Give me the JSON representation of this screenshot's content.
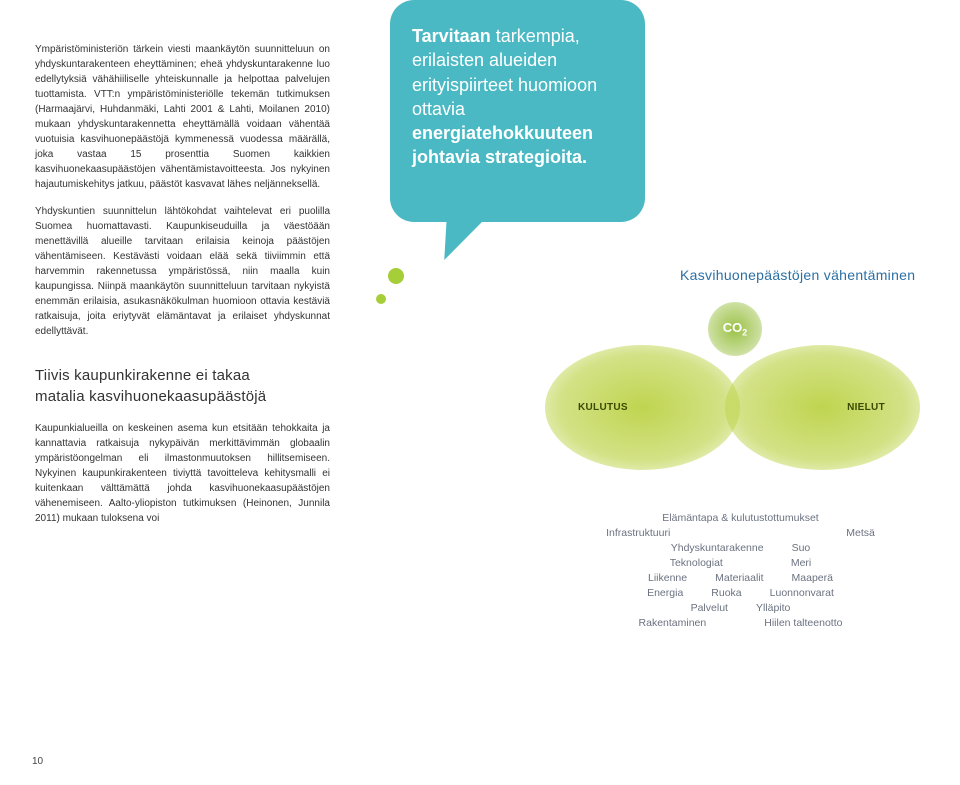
{
  "colors": {
    "bubble_bg": "#4bb9c4",
    "accent_dot": "#a6ce39",
    "section_title": "#2b6fa3",
    "blob_fill": "#bcd246",
    "blob_text": "#3a4a00",
    "tag_text": "#6b7280",
    "body_text": "#333333"
  },
  "leftColumn": {
    "para1": "Ympäristöministeriön tärkein viesti maankäytön suunnitteluun on yhdyskuntarakenteen eheyttäminen; eheä yhdyskuntarakenne luo edellytyksiä vähähiiliselle yhteiskunnalle ja helpottaa palvelujen tuottamista. VTT:n ympäristöministeriölle tekemän tutkimuksen (Harmaajärvi, Huhdanmäki, Lahti 2001 & Lahti, Moilanen 2010) mukaan yhdyskuntarakennetta eheyttämällä voidaan vähentää vuotuisia kasvihuonepäästöjä kymmenessä vuodessa määrällä, joka vastaa 15 prosenttia Suomen kaikkien kasvihuonekaasupäästöjen vähentämistavoitteesta. Jos nykyinen hajautumiskehitys jatkuu, päästöt kasvavat lähes neljänneksellä.",
    "para2": "Yhdyskuntien suunnittelun lähtökohdat vaihtelevat eri puolilla Suomea huomattavasti. Kaupunkiseuduilla ja väestöään menettävillä alueille tarvitaan erilaisia keinoja päästöjen vähentämiseen. Kestävästi voidaan elää sekä tiiviimmin että harvemmin rakennetussa ympäristössä, niin maalla kuin kaupungissa. Niinpä maankäytön suunnitteluun tarvitaan nykyistä enemmän erilaisia, asukasnäkökulman huomioon ottavia kestäviä ratkaisuja, joita eriytyvät elämäntavat ja erilaiset yhdyskunnat edellyttävät.",
    "subhead": "Tiivis kaupunkirakenne ei takaa\nmatalia kasvihuonekaasupäästöjä",
    "para3": "Kaupunkialueilla on keskeinen asema kun etsitään tehokkaita ja kannattavia ratkaisuja nykypäivän merkittävimmän globaalin ympäristöongelman eli ilmastonmuutoksen hillitsemiseen. Nykyinen kaupunkirakenteen tiviyttä tavoitteleva kehitysmalli ei kuitenkaan välttämättä johda kasvihuonekaasupäästöjen vähenemiseen. Aalto-yliopiston tutkimuksen (Heinonen, Junnila 2011) mukaan tuloksena voi"
  },
  "bubble": {
    "line1_bold": "Tarvitaan",
    "line1_rest": " tarkempia,",
    "line2": "erilaisten alueiden",
    "line3": "erityispiirteet huomioon",
    "line4_pre": "ottavia ",
    "line4_bold": "energiatehokkuuteen",
    "line5_bold": "johtavia strategioita."
  },
  "sectionTitle": "Kasvihuonepäästöjen vähentäminen",
  "diagram": {
    "co2_label": "CO",
    "co2_sub": "2",
    "left_label": "KULUTUS",
    "right_label": "NIELUT"
  },
  "tags": {
    "r1": [
      "Elämäntapa & kulutustottumukset"
    ],
    "r2": [
      "Infrastruktuuri",
      "Metsä"
    ],
    "r3": [
      "Yhdyskuntarakenne",
      "Suo"
    ],
    "r4": [
      "Teknologiat",
      "Meri"
    ],
    "r5": [
      "Liikenne",
      "Materiaalit",
      "Maaperä"
    ],
    "r6": [
      "Energia",
      "Ruoka",
      "Luonnonvarat"
    ],
    "r7": [
      "Palvelut",
      "Ylläpito"
    ],
    "r8": [
      "Rakentaminen",
      "Hiilen talteenotto"
    ]
  },
  "pageNumber": "10"
}
